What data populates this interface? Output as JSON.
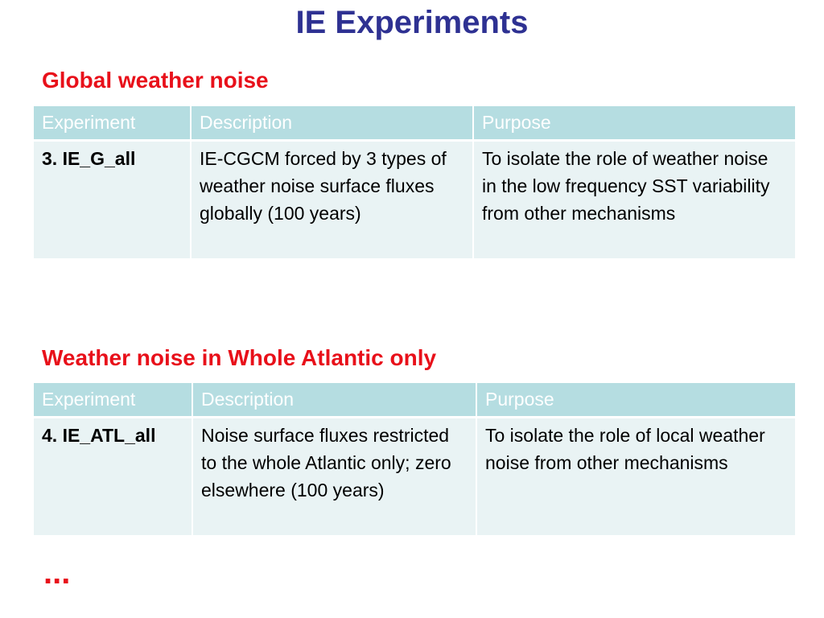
{
  "title": "IE Experiments",
  "sections": [
    {
      "heading": "Global weather noise",
      "table": {
        "header": [
          "Experiment",
          "Description",
          "Purpose"
        ],
        "rows": [
          [
            "3. IE_G_all",
            "IE-CGCM forced by 3 types of weather noise surface fluxes globally (100 years)",
            "To isolate the role of weather noise in the low frequency SST variability from other mechanisms"
          ]
        ]
      }
    },
    {
      "heading": "Weather noise in Whole Atlantic only",
      "table": {
        "header": [
          "Experiment",
          "Description",
          "Purpose"
        ],
        "rows": [
          [
            "4. IE_ATL_all",
            "Noise surface fluxes restricted to the whole Atlantic only; zero elsewhere (100 years)",
            "To isolate the role of local weather noise from other mechanisms"
          ]
        ]
      }
    }
  ],
  "ellipsis": "..."
}
